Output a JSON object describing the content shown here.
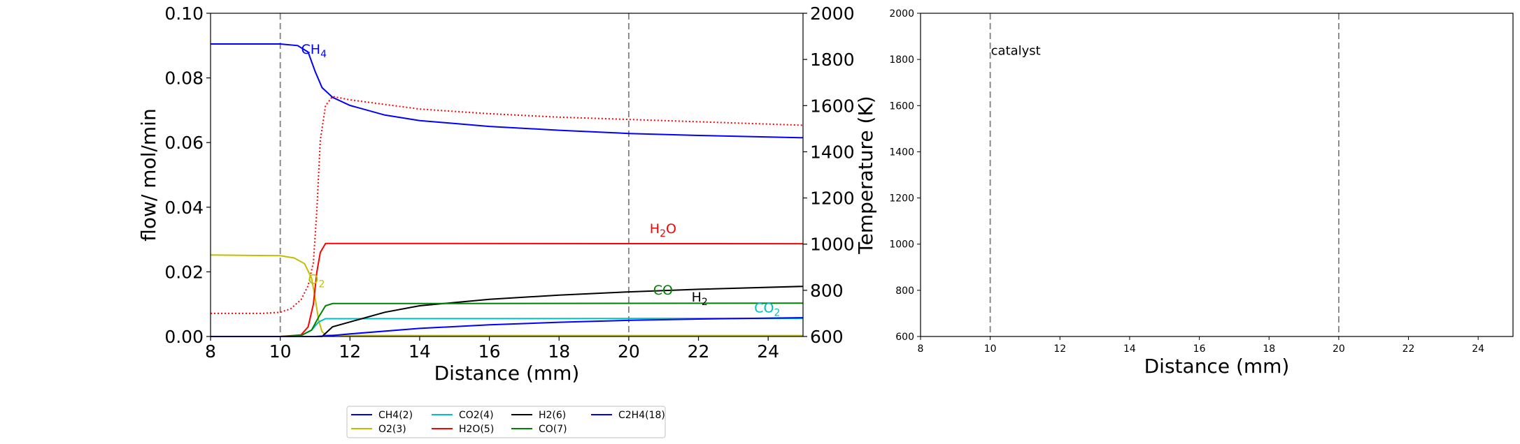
{
  "chart_data": [
    {
      "type": "line",
      "xlabel": "Distance (mm)",
      "ylabel": "flow/ mol/min",
      "y2label": "Temperature (K)",
      "xlim": [
        8,
        25
      ],
      "ylim": [
        0,
        0.1
      ],
      "y2lim": [
        600,
        2000
      ],
      "x_ticks": [
        "8",
        "10",
        "12",
        "14",
        "16",
        "18",
        "20",
        "22",
        "24"
      ],
      "y_ticks": [
        "0.00",
        "0.02",
        "0.04",
        "0.06",
        "0.08",
        "0.10"
      ],
      "y2_ticks": [
        "600",
        "800",
        "1000",
        "1200",
        "1400",
        "1600",
        "1800",
        "2000"
      ],
      "vlines": [
        10,
        20
      ],
      "grid": false,
      "legend_position": "bottom-center",
      "series": [
        {
          "name": "CH4(2)",
          "color": "#0000ff",
          "axis": "left",
          "x": [
            8,
            10,
            10.5,
            10.8,
            11.0,
            11.2,
            11.5,
            12,
            13,
            14,
            16,
            18,
            20,
            22,
            25
          ],
          "y": [
            0.0905,
            0.0905,
            0.09,
            0.088,
            0.082,
            0.077,
            0.074,
            0.0715,
            0.0685,
            0.0668,
            0.065,
            0.0638,
            0.0628,
            0.0622,
            0.0615
          ]
        },
        {
          "name": "O2(3)",
          "color": "#bfbf00",
          "axis": "left",
          "x": [
            8,
            10,
            10.4,
            10.7,
            10.9,
            11.0,
            11.1,
            11.2,
            11.3,
            12,
            25
          ],
          "y": [
            0.0252,
            0.025,
            0.0243,
            0.0225,
            0.018,
            0.012,
            0.005,
            0.0015,
            0.0005,
            0.0003,
            0.0003
          ]
        },
        {
          "name": "CO2(4)",
          "color": "#00bfbf",
          "axis": "left",
          "x": [
            8,
            10,
            10.6,
            10.9,
            11.1,
            11.3,
            12,
            25
          ],
          "y": [
            0,
            0,
            0.0003,
            0.002,
            0.0045,
            0.0055,
            0.0055,
            0.0056
          ]
        },
        {
          "name": "H2O(5)",
          "color": "#ff0000",
          "axis": "left",
          "x": [
            8,
            10,
            10.6,
            10.8,
            10.95,
            11.05,
            11.15,
            11.3,
            12,
            25
          ],
          "y": [
            0,
            0,
            0.0005,
            0.003,
            0.01,
            0.02,
            0.026,
            0.0288,
            0.0288,
            0.0287
          ]
        },
        {
          "name": "H2(6)",
          "color": "#000000",
          "axis": "left",
          "x": [
            8,
            10,
            11.2,
            11.35,
            11.5,
            12,
            13,
            14,
            16,
            18,
            20,
            22,
            25
          ],
          "y": [
            0,
            0,
            0,
            0.0015,
            0.003,
            0.0045,
            0.0075,
            0.0095,
            0.0115,
            0.0128,
            0.0138,
            0.0146,
            0.0155
          ]
        },
        {
          "name": "CO(7)",
          "color": "#008000",
          "axis": "left",
          "x": [
            8,
            10,
            10.6,
            10.9,
            11.1,
            11.3,
            11.5,
            12,
            25
          ],
          "y": [
            0,
            0,
            0.0003,
            0.002,
            0.006,
            0.0095,
            0.0102,
            0.0102,
            0.0103
          ]
        },
        {
          "name": "C2H4(18)",
          "color": "#0000ff",
          "axis": "left",
          "x": [
            8,
            10,
            11.0,
            11.5,
            12,
            14,
            16,
            18,
            20,
            22,
            25
          ],
          "y": [
            0,
            0,
            0,
            0.0003,
            0.0008,
            0.0025,
            0.0036,
            0.0044,
            0.005,
            0.0054,
            0.0058
          ]
        },
        {
          "name": "Temperature",
          "color": "#ff0000",
          "dashed": true,
          "axis": "right",
          "x": [
            8,
            9.5,
            10,
            10.3,
            10.6,
            10.8,
            10.95,
            11.05,
            11.15,
            11.3,
            11.5,
            12,
            14,
            16,
            18,
            20,
            22,
            25
          ],
          "y": [
            700,
            700,
            705,
            720,
            760,
            820,
            920,
            1150,
            1450,
            1600,
            1640,
            1625,
            1585,
            1565,
            1550,
            1540,
            1530,
            1515
          ]
        }
      ],
      "annotations": [
        {
          "text": "CH",
          "sub": "4",
          "x": 10.6,
          "y": 0.0875,
          "color": "#0000ff"
        },
        {
          "text": "H",
          "sub": "2",
          "text2": "O",
          "x": 20.6,
          "y": 0.032,
          "color": "#ff0000"
        },
        {
          "text": "O",
          "sub": "2",
          "x": 10.8,
          "y": 0.0163,
          "color": "#bfbf00"
        },
        {
          "text": "CO",
          "sub": "",
          "x": 20.7,
          "y": 0.013,
          "color": "#008000"
        },
        {
          "text": "H",
          "sub": "2",
          "x": 21.8,
          "y": 0.0108,
          "color": "#000000"
        },
        {
          "text": "CO",
          "sub": "2",
          "x": 23.6,
          "y": 0.0075,
          "color": "#00bfbf"
        }
      ],
      "legend": [
        {
          "label": "CH4(2)",
          "color": "#0000ff"
        },
        {
          "label": "O2(3)",
          "color": "#bfbf00"
        },
        {
          "label": "CO2(4)",
          "color": "#00bfbf"
        },
        {
          "label": "H2O(5)",
          "color": "#ff0000"
        },
        {
          "label": "H2(6)",
          "color": "#000000"
        },
        {
          "label": "CO(7)",
          "color": "#008000"
        },
        {
          "label": "C2H4(18)",
          "color": "#0000ff"
        }
      ]
    },
    {
      "type": "line",
      "xlabel": "Distance (mm)",
      "xlim": [
        8,
        25
      ],
      "ylim": [
        600,
        2000
      ],
      "x_ticks": [
        "8",
        "10",
        "12",
        "14",
        "16",
        "18",
        "20",
        "22",
        "24"
      ],
      "y_ticks": [
        "600",
        "800",
        "1000",
        "1200",
        "1400",
        "1600",
        "1800",
        "2000"
      ],
      "vlines": [
        10,
        20
      ],
      "grid": false,
      "annotations": [
        {
          "text": "catalyst",
          "x": 10.0,
          "y": 1820,
          "color": "#000000"
        }
      ],
      "series": []
    }
  ]
}
